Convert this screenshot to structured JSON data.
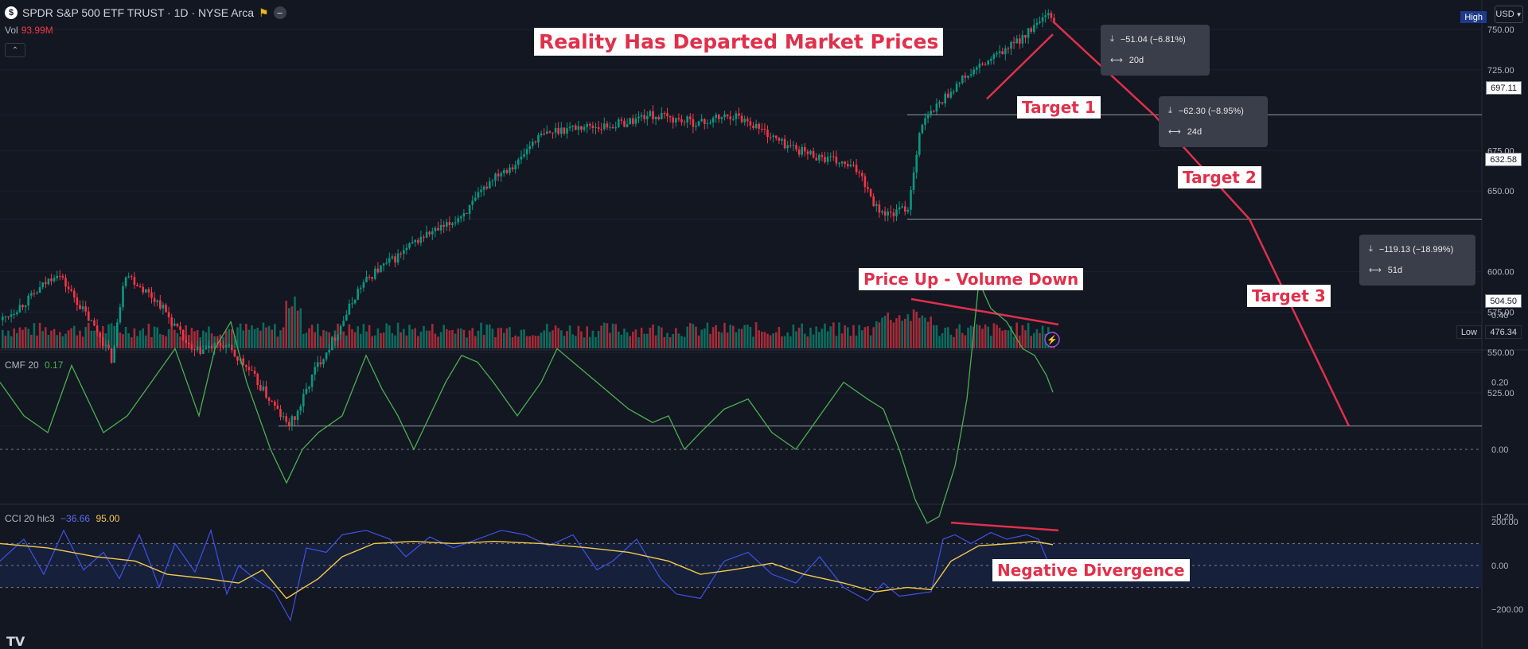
{
  "header": {
    "symbol_title": "SPDR S&P 500 ETF TRUST · 1D · NYSE Arca",
    "logo_glyph": "$",
    "flag_icon": "flag-icon",
    "vol_label": "Vol",
    "vol_value": "93.99M",
    "collapse_glyph": "⌃"
  },
  "currency": {
    "label": "USD",
    "dropdown_icon": "chevron-down-icon"
  },
  "annotations": {
    "title": "Reality Has Departed Market Prices",
    "target1": "Target 1",
    "target2": "Target 2",
    "target3": "Target 3",
    "volume_note": "Price Up - Volume Down",
    "divergence_note": "Negative Divergence",
    "line_color": "#e0304b"
  },
  "measures": [
    {
      "change": "−51.04 (−6.81%)",
      "bars": "20d"
    },
    {
      "change": "−62.30 (−8.95%)",
      "bars": "24d"
    },
    {
      "change": "−119.13 (−18.99%)",
      "bars": "51d"
    }
  ],
  "price_axis": {
    "ticks": [
      "750.00",
      "725.00",
      "697.11",
      "675.00",
      "650.00",
      "632.58",
      "600.00",
      "575.00",
      "550.00",
      "525.00",
      "504.50"
    ],
    "tick_values": [
      750,
      725,
      697.11,
      675,
      650,
      632.58,
      600,
      575,
      550,
      525,
      504.5
    ],
    "high_label": "High",
    "low_label": "Low",
    "low_value": "476.34",
    "level_lines": [
      697.11,
      632.58,
      504.5
    ]
  },
  "cmf": {
    "label": "CMF 20",
    "value": "0.17",
    "color": "#4caf50",
    "ticks": [
      "0.40",
      "0.20",
      "0.00",
      "−0.20"
    ],
    "tick_values": [
      0.4,
      0.2,
      0.0,
      -0.2
    ]
  },
  "cci": {
    "label": "CCI 20 hlc3",
    "value": "−36.66",
    "ma_value": "95.00",
    "cci_color": "#3f51e6",
    "ma_color": "#f2c94c",
    "ticks": [
      "200.00",
      "0.00",
      "−200.00"
    ],
    "tick_values": [
      200,
      0,
      -200
    ]
  },
  "branding": {
    "logo": "TV"
  },
  "colors": {
    "up": "#089981",
    "down": "#f23645",
    "background": "#131722"
  },
  "chart_data": {
    "type": "candlestick",
    "symbol": "SPY",
    "timeframe": "1D",
    "price_range": [
      476.34,
      760
    ],
    "price_path": [
      [
        0,
        570
      ],
      [
        40,
        585
      ],
      [
        70,
        600
      ],
      [
        95,
        582
      ],
      [
        125,
        560
      ],
      [
        140,
        545
      ],
      [
        155,
        600
      ],
      [
        200,
        580
      ],
      [
        240,
        550
      ],
      [
        280,
        555
      ],
      [
        310,
        540
      ],
      [
        360,
        505
      ],
      [
        370,
        510
      ],
      [
        395,
        540
      ],
      [
        420,
        560
      ],
      [
        450,
        590
      ],
      [
        470,
        600
      ],
      [
        500,
        610
      ],
      [
        530,
        622
      ],
      [
        560,
        628
      ],
      [
        590,
        640
      ],
      [
        620,
        660
      ],
      [
        650,
        668
      ],
      [
        670,
        682
      ],
      [
        700,
        688
      ],
      [
        730,
        690
      ],
      [
        760,
        690
      ],
      [
        790,
        693
      ],
      [
        810,
        697
      ],
      [
        830,
        696
      ],
      [
        850,
        694
      ],
      [
        880,
        692
      ],
      [
        900,
        695
      ],
      [
        920,
        697
      ],
      [
        940,
        693
      ],
      [
        980,
        680
      ],
      [
        1010,
        674
      ],
      [
        1050,
        668
      ],
      [
        1080,
        662
      ],
      [
        1090,
        650
      ],
      [
        1100,
        640
      ],
      [
        1115,
        635
      ],
      [
        1140,
        640
      ],
      [
        1155,
        690
      ],
      [
        1180,
        705
      ],
      [
        1210,
        720
      ],
      [
        1240,
        730
      ],
      [
        1270,
        740
      ],
      [
        1300,
        752
      ],
      [
        1315,
        758
      ],
      [
        1323,
        755
      ]
    ],
    "projection": [
      [
        1323,
        755
      ],
      [
        1450,
        697.11
      ],
      [
        1570,
        632.58
      ],
      [
        1695,
        504.5
      ]
    ],
    "volume_trend": [
      [
        1145,
        0.78
      ],
      [
        1330,
        0.5
      ]
    ],
    "cmf_path": [
      [
        0,
        0.2
      ],
      [
        30,
        0.1
      ],
      [
        60,
        0.05
      ],
      [
        90,
        0.25
      ],
      [
        110,
        0.15
      ],
      [
        130,
        0.05
      ],
      [
        160,
        0.1
      ],
      [
        190,
        0.2
      ],
      [
        220,
        0.3
      ],
      [
        250,
        0.1
      ],
      [
        270,
        0.3
      ],
      [
        290,
        0.38
      ],
      [
        310,
        0.2
      ],
      [
        340,
        0.0
      ],
      [
        360,
        -0.1
      ],
      [
        380,
        0.0
      ],
      [
        400,
        0.05
      ],
      [
        430,
        0.1
      ],
      [
        460,
        0.28
      ],
      [
        480,
        0.18
      ],
      [
        500,
        0.1
      ],
      [
        520,
        0.0
      ],
      [
        540,
        0.1
      ],
      [
        560,
        0.2
      ],
      [
        580,
        0.28
      ],
      [
        600,
        0.26
      ],
      [
        620,
        0.2
      ],
      [
        650,
        0.1
      ],
      [
        680,
        0.2
      ],
      [
        700,
        0.3
      ],
      [
        720,
        0.26
      ],
      [
        740,
        0.22
      ],
      [
        760,
        0.18
      ],
      [
        790,
        0.12
      ],
      [
        820,
        0.08
      ],
      [
        840,
        0.1
      ],
      [
        860,
        0.0
      ],
      [
        880,
        0.05
      ],
      [
        910,
        0.12
      ],
      [
        940,
        0.15
      ],
      [
        970,
        0.05
      ],
      [
        1000,
        0.0
      ],
      [
        1030,
        0.1
      ],
      [
        1060,
        0.2
      ],
      [
        1090,
        0.15
      ],
      [
        1110,
        0.12
      ],
      [
        1130,
        0.0
      ],
      [
        1150,
        -0.15
      ],
      [
        1165,
        -0.22
      ],
      [
        1180,
        -0.2
      ],
      [
        1200,
        -0.05
      ],
      [
        1215,
        0.15
      ],
      [
        1230,
        0.5
      ],
      [
        1245,
        0.42
      ],
      [
        1265,
        0.38
      ],
      [
        1285,
        0.3
      ],
      [
        1300,
        0.28
      ],
      [
        1315,
        0.22
      ],
      [
        1323,
        0.17
      ]
    ],
    "cci_path": [
      [
        0,
        20
      ],
      [
        30,
        120
      ],
      [
        55,
        -40
      ],
      [
        80,
        160
      ],
      [
        105,
        -20
      ],
      [
        130,
        60
      ],
      [
        150,
        -60
      ],
      [
        175,
        140
      ],
      [
        200,
        -100
      ],
      [
        220,
        100
      ],
      [
        245,
        -30
      ],
      [
        265,
        160
      ],
      [
        285,
        -130
      ],
      [
        300,
        0
      ],
      [
        320,
        -60
      ],
      [
        345,
        -120
      ],
      [
        365,
        -250
      ],
      [
        385,
        80
      ],
      [
        410,
        60
      ],
      [
        430,
        140
      ],
      [
        460,
        160
      ],
      [
        490,
        120
      ],
      [
        510,
        40
      ],
      [
        540,
        130
      ],
      [
        570,
        80
      ],
      [
        600,
        120
      ],
      [
        630,
        160
      ],
      [
        660,
        140
      ],
      [
        690,
        90
      ],
      [
        720,
        140
      ],
      [
        750,
        -20
      ],
      [
        770,
        20
      ],
      [
        800,
        120
      ],
      [
        830,
        -60
      ],
      [
        850,
        -130
      ],
      [
        880,
        -150
      ],
      [
        910,
        20
      ],
      [
        940,
        60
      ],
      [
        970,
        -40
      ],
      [
        1000,
        -80
      ],
      [
        1030,
        40
      ],
      [
        1060,
        -100
      ],
      [
        1090,
        -160
      ],
      [
        1110,
        -80
      ],
      [
        1130,
        -140
      ],
      [
        1150,
        -130
      ],
      [
        1170,
        -120
      ],
      [
        1185,
        120
      ],
      [
        1200,
        140
      ],
      [
        1220,
        100
      ],
      [
        1245,
        150
      ],
      [
        1265,
        120
      ],
      [
        1290,
        140
      ],
      [
        1305,
        120
      ],
      [
        1323,
        -36.66
      ]
    ],
    "cci_ma_path": [
      [
        0,
        100
      ],
      [
        60,
        80
      ],
      [
        120,
        40
      ],
      [
        170,
        20
      ],
      [
        210,
        -40
      ],
      [
        260,
        -60
      ],
      [
        300,
        -80
      ],
      [
        330,
        -20
      ],
      [
        360,
        -150
      ],
      [
        400,
        -60
      ],
      [
        430,
        40
      ],
      [
        470,
        100
      ],
      [
        520,
        110
      ],
      [
        570,
        100
      ],
      [
        620,
        110
      ],
      [
        680,
        100
      ],
      [
        740,
        80
      ],
      [
        790,
        60
      ],
      [
        840,
        20
      ],
      [
        880,
        -40
      ],
      [
        920,
        -20
      ],
      [
        970,
        10
      ],
      [
        1010,
        -40
      ],
      [
        1060,
        -80
      ],
      [
        1100,
        -120
      ],
      [
        1140,
        -100
      ],
      [
        1170,
        -110
      ],
      [
        1195,
        20
      ],
      [
        1230,
        90
      ],
      [
        1270,
        100
      ],
      [
        1300,
        110
      ],
      [
        1323,
        95
      ]
    ],
    "cci_divergence": [
      [
        1195,
        195
      ],
      [
        1330,
        160
      ]
    ]
  }
}
